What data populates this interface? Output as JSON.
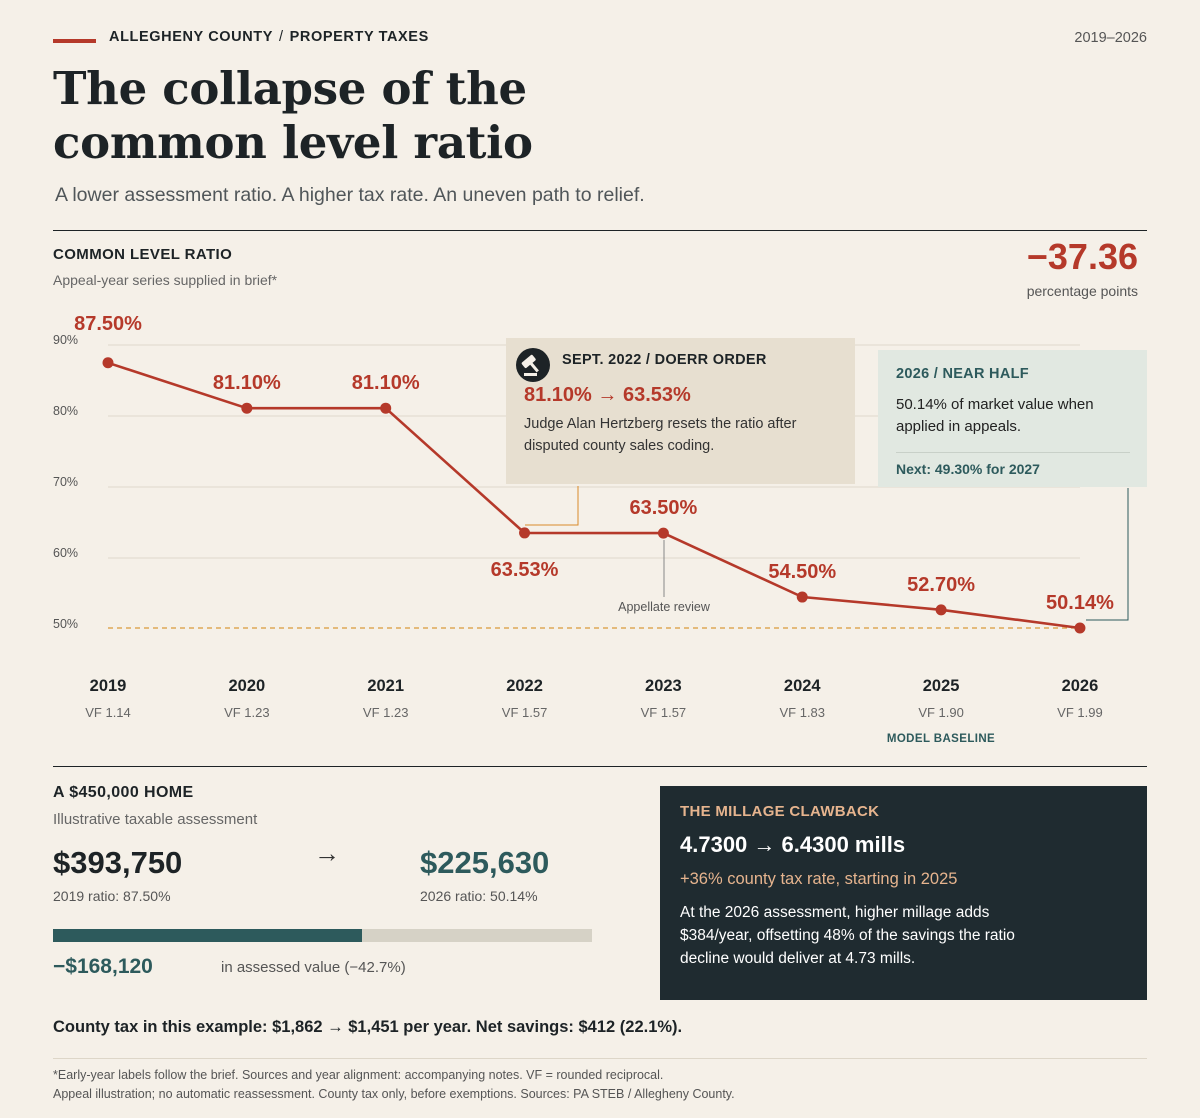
{
  "header": {
    "kicker_left": "ALLEGHENY COUNTY",
    "kicker_sep": "/",
    "kicker_right": "PROPERTY TAXES",
    "years": "2019–2026",
    "title_line1": "The collapse of the",
    "title_line2": "common level ratio",
    "subtitle": "A lower assessment ratio. A higher tax rate. An uneven path to relief."
  },
  "chart_section": {
    "heading": "COMMON LEVEL RATIO",
    "subheading": "Appeal-year series supplied in brief*",
    "change_value": "−37.36",
    "change_label": "percentage points"
  },
  "chart_data": {
    "type": "line",
    "title": "COMMON LEVEL RATIO",
    "x": [
      "2019",
      "2020",
      "2021",
      "2022",
      "2023",
      "2024",
      "2025",
      "2026"
    ],
    "series": [
      {
        "values": [
          87.5,
          81.1,
          81.1,
          63.53,
          63.5,
          54.5,
          52.7,
          50.14
        ]
      }
    ],
    "point_labels": [
      "87.50%",
      "81.10%",
      "81.10%",
      "63.53%",
      "63.50%",
      "54.50%",
      "52.70%",
      "50.14%"
    ],
    "vf_labels": [
      "VF 1.14",
      "VF 1.23",
      "VF 1.23",
      "VF 1.57",
      "VF 1.57",
      "VF 1.83",
      "VF 1.90",
      "VF 1.99"
    ],
    "y_ticks": [
      90,
      80,
      70,
      60,
      50
    ],
    "y_tick_labels": [
      "90%",
      "80%",
      "70%",
      "60%",
      "50%"
    ],
    "ylim": [
      50,
      90
    ],
    "reference_line": 50.14,
    "grid": true,
    "annotation_appellate": "Appellate review",
    "model_baseline_label": "MODEL BASELINE",
    "colors": {
      "line": "#b5392a",
      "reference": "#d99a3a",
      "grid": "#e0d9cc",
      "callout_leader_orange": "#d98a2a",
      "callout_leader_teal": "#2d5a5c"
    }
  },
  "callout_doerr": {
    "icon": "gavel-icon",
    "heading": "SEPT. 2022 / DOERR ORDER",
    "change": "81.10% → 63.53%",
    "text": "Judge Alan Hertzberg resets the ratio after disputed county sales coding."
  },
  "callout_half": {
    "heading": "2026 / NEAR HALF",
    "text": "50.14% of market value when applied in appeals.",
    "next": "Next: 49.30% for 2027"
  },
  "home": {
    "heading": "A $450,000 HOME",
    "subheading": "Illustrative taxable assessment",
    "before_value": "$393,750",
    "before_label": "2019 ratio: 87.50%",
    "arrow": "→",
    "after_value": "$225,630",
    "after_label": "2026 ratio: 50.14%",
    "bar_fill_fraction": 0.573,
    "delta_value": "−$168,120",
    "delta_label": "in assessed value (−42.7%)"
  },
  "millage": {
    "heading": "THE MILLAGE CLAWBACK",
    "change": "4.7300 → 6.4300 mills",
    "pct": "+36% county tax rate, starting in 2025",
    "text": "At the 2026 assessment, higher millage adds $384/year, offsetting 48% of the savings the ratio decline would deliver at 4.73 mills."
  },
  "summary": "County tax in this example: $1,862 → $1,451 per year. Net savings: $412 (22.1%).",
  "footnotes": {
    "line1": "*Early-year labels follow the brief. Sources and year alignment: accompanying notes. VF = rounded reciprocal.",
    "line2": "Appeal illustration; no automatic reassessment. County tax only, before exemptions. Sources: PA STEB / Allegheny County."
  }
}
